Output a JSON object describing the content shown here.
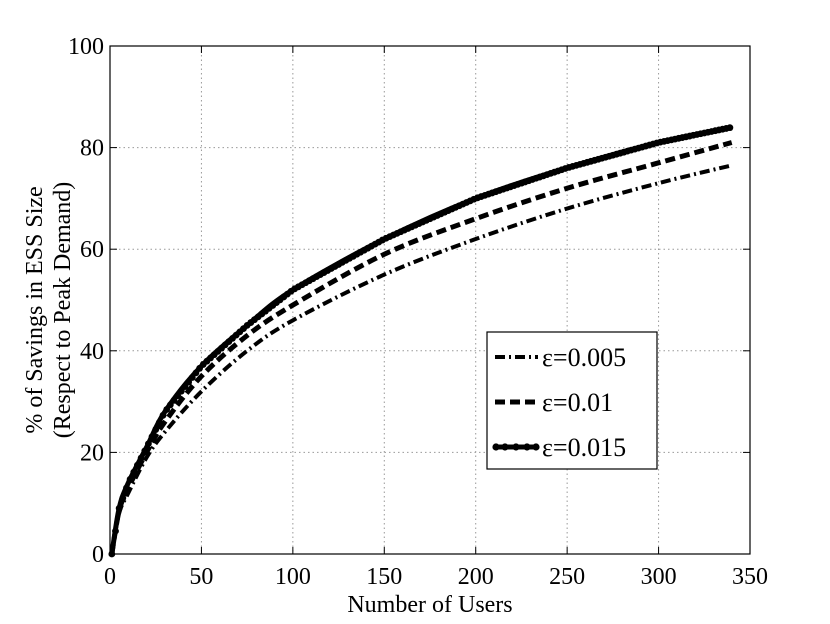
{
  "chart_data": {
    "type": "line",
    "xlabel": "Number of Users",
    "ylabel_line1": "% of Savings in ESS Size",
    "ylabel_line2": "(Respect to Peak Demand)",
    "xlim": [
      0,
      350
    ],
    "ylim": [
      0,
      100
    ],
    "xticks": [
      0,
      50,
      100,
      150,
      200,
      250,
      300,
      350
    ],
    "yticks": [
      0,
      20,
      40,
      60,
      80,
      100
    ],
    "grid": true,
    "legend_position": "center-right",
    "series": [
      {
        "name": "ε=0.005",
        "style": "dash-dot",
        "color": "#000000",
        "x": [
          1,
          5,
          10,
          20,
          30,
          50,
          75,
          100,
          150,
          200,
          250,
          300,
          340
        ],
        "y": [
          0,
          8,
          12,
          19,
          24,
          32,
          40,
          46,
          55,
          62,
          68,
          73,
          76.5
        ]
      },
      {
        "name": "ε=0.01",
        "style": "dashed",
        "color": "#000000",
        "x": [
          1,
          5,
          10,
          20,
          30,
          50,
          75,
          100,
          150,
          200,
          250,
          300,
          340
        ],
        "y": [
          0,
          8.5,
          13,
          20,
          26,
          35,
          43,
          49,
          59,
          66,
          72,
          77,
          81
        ]
      },
      {
        "name": "ε=0.015",
        "style": "solid-marker",
        "color": "#000000",
        "x": [
          1,
          5,
          10,
          20,
          30,
          50,
          75,
          100,
          150,
          200,
          250,
          300,
          340
        ],
        "y": [
          0,
          9,
          14,
          21,
          28,
          37,
          45,
          52,
          62,
          70,
          76,
          81,
          84
        ]
      }
    ]
  }
}
